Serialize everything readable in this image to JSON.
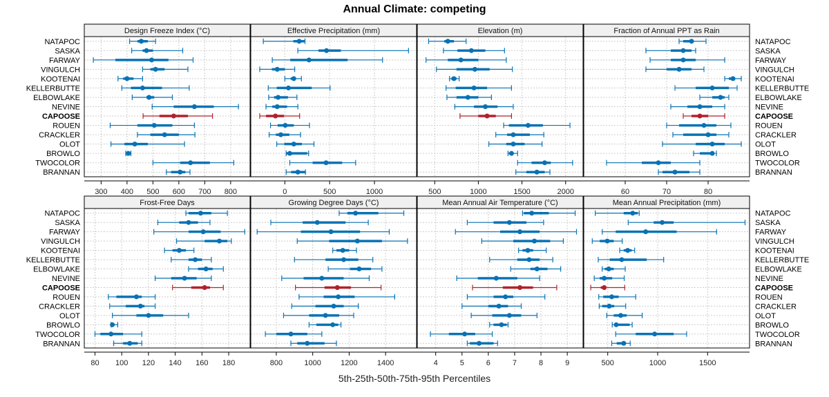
{
  "title": "Annual Climate: competing",
  "xlabel": "5th-25th-50th-75th-95th Percentiles",
  "colors": {
    "normal": "#0872b5",
    "highlight": "#b2202a",
    "strip_bg": "#f0f0f0",
    "grid": "#cccccc"
  },
  "highlight_site": "CAPOOSE",
  "chart_data": {
    "type": "interval-dotplot",
    "title": "Annual Climate: competing",
    "xlabel": "5th-25th-50th-75th-95th Percentiles",
    "sites": [
      "NATAPOC",
      "SASKA",
      "FARWAY",
      "VINGULCH",
      "KOOTENAI",
      "KELLERBUTTE",
      "ELBOWLAKE",
      "NEVINE",
      "CAPOOSE",
      "ROUEN",
      "CRACKLER",
      "OLOT",
      "BROWLO",
      "TWOCOLOR",
      "BRANNAN"
    ],
    "panels": [
      {
        "name": "Design Freeze Index (°C)",
        "ticks": [
          300,
          400,
          500,
          600,
          700,
          800
        ],
        "xlim": [
          235,
          875
        ],
        "values": [
          [
            410,
            440,
            455,
            480,
            510
          ],
          [
            418,
            460,
            475,
            500,
            615
          ],
          [
            270,
            355,
            495,
            560,
            655
          ],
          [
            460,
            490,
            510,
            545,
            635
          ],
          [
            365,
            385,
            400,
            425,
            460
          ],
          [
            380,
            415,
            460,
            535,
            640
          ],
          [
            420,
            475,
            485,
            505,
            575
          ],
          [
            497,
            580,
            660,
            735,
            830
          ],
          [
            462,
            525,
            580,
            635,
            730
          ],
          [
            335,
            440,
            505,
            575,
            660
          ],
          [
            440,
            490,
            545,
            600,
            662
          ],
          [
            338,
            390,
            430,
            480,
            622
          ],
          [
            395,
            400,
            405,
            410,
            415
          ],
          [
            500,
            605,
            645,
            720,
            812
          ],
          [
            552,
            570,
            605,
            625,
            643
          ]
        ]
      },
      {
        "name": "Effective Precipitation (mm)",
        "ticks": [
          0,
          500,
          1000
        ],
        "xlim": [
          -380,
          1470
        ],
        "values": [
          [
            -240,
            95,
            160,
            220,
            225
          ],
          [
            145,
            375,
            465,
            625,
            1380
          ],
          [
            -140,
            60,
            270,
            700,
            1090
          ],
          [
            -280,
            -145,
            -85,
            0,
            110
          ],
          [
            0,
            65,
            100,
            120,
            185
          ],
          [
            -185,
            -90,
            40,
            300,
            505
          ],
          [
            -180,
            -120,
            -75,
            35,
            135
          ],
          [
            -210,
            -140,
            -85,
            25,
            145
          ],
          [
            -280,
            -210,
            -105,
            -10,
            165
          ],
          [
            -160,
            -80,
            5,
            100,
            275
          ],
          [
            -175,
            -100,
            -45,
            50,
            175
          ],
          [
            -90,
            -5,
            100,
            190,
            325
          ],
          [
            15,
            15,
            55,
            250,
            265
          ],
          [
            55,
            310,
            460,
            640,
            790
          ],
          [
            15,
            70,
            145,
            230,
            230
          ]
        ]
      },
      {
        "name": "Elevation (m)",
        "ticks": [
          500,
          1000,
          1500,
          2000
        ],
        "xlim": [
          300,
          2200
        ],
        "values": [
          [
            430,
            610,
            650,
            720,
            860
          ],
          [
            600,
            760,
            920,
            1080,
            1300
          ],
          [
            400,
            650,
            800,
            1000,
            1320
          ],
          [
            520,
            750,
            960,
            1130,
            1390
          ],
          [
            670,
            690,
            720,
            750,
            780
          ],
          [
            630,
            740,
            950,
            1100,
            1380
          ],
          [
            640,
            750,
            880,
            1000,
            1150
          ],
          [
            730,
            950,
            1080,
            1220,
            1400
          ],
          [
            790,
            1000,
            1100,
            1200,
            1380
          ],
          [
            1290,
            1350,
            1570,
            1740,
            2050
          ],
          [
            1200,
            1330,
            1400,
            1590,
            1750
          ],
          [
            1120,
            1320,
            1400,
            1530,
            1730
          ],
          [
            1340,
            1350,
            1380,
            1400,
            1450
          ],
          [
            1450,
            1610,
            1760,
            1830,
            2080
          ],
          [
            1430,
            1550,
            1670,
            1760,
            1820
          ]
        ]
      },
      {
        "name": "Fraction of Annual PPT as Rain",
        "ticks": [
          60,
          70,
          80
        ],
        "xlim": [
          50,
          90
        ],
        "values": [
          [
            73,
            74,
            76,
            76.5,
            79.5
          ],
          [
            65,
            71,
            74,
            76,
            77
          ],
          [
            66,
            71,
            74,
            77,
            84
          ],
          [
            65,
            70,
            73,
            76,
            79
          ],
          [
            84,
            85,
            86,
            86.5,
            88
          ],
          [
            72,
            77,
            81,
            85,
            87
          ],
          [
            78,
            81,
            83,
            84,
            85
          ],
          [
            71,
            75,
            78,
            81,
            84
          ],
          [
            74,
            76,
            78,
            80,
            84
          ],
          [
            70,
            73,
            79,
            82,
            85.5
          ],
          [
            71.5,
            74,
            80,
            82,
            85
          ],
          [
            69,
            77,
            81,
            84,
            88
          ],
          [
            76.5,
            78,
            81,
            81.5,
            82
          ],
          [
            55.5,
            64,
            68,
            71,
            78
          ],
          [
            68,
            69,
            72,
            75.5,
            78
          ]
        ]
      },
      {
        "name": "Frost-Free Days",
        "ticks": [
          80,
          100,
          120,
          140,
          160,
          180
        ],
        "xlim": [
          72,
          196
        ],
        "values": [
          [
            148,
            150,
            159,
            167,
            179
          ],
          [
            127,
            143,
            150,
            157,
            166
          ],
          [
            124,
            150,
            161,
            174,
            192
          ],
          [
            141,
            162,
            173,
            179,
            182
          ],
          [
            132,
            138,
            143,
            148,
            154
          ],
          [
            137,
            150,
            155,
            160,
            167
          ],
          [
            150,
            157,
            163,
            168,
            176
          ],
          [
            125,
            137,
            147,
            156,
            167
          ],
          [
            138,
            152,
            162,
            166,
            176
          ],
          [
            90,
            96,
            111,
            115,
            125
          ],
          [
            91,
            103,
            114,
            117,
            125
          ],
          [
            93,
            111,
            120,
            131,
            150
          ],
          [
            92,
            92,
            93,
            94,
            97
          ],
          [
            80,
            84,
            92,
            101,
            115
          ],
          [
            94,
            101,
            106,
            112,
            115
          ]
        ]
      },
      {
        "name": "Growing Degree Days (°C)",
        "ticks": [
          800,
          1000,
          1200,
          1400
        ],
        "xlim": [
          660,
          1570
        ],
        "values": [
          [
            1145,
            1190,
            1235,
            1360,
            1500
          ],
          [
            770,
            945,
            1025,
            1180,
            1305
          ],
          [
            695,
            935,
            1100,
            1260,
            1420
          ],
          [
            915,
            1090,
            1245,
            1380,
            1520
          ],
          [
            1110,
            1130,
            1165,
            1200,
            1240
          ],
          [
            900,
            1070,
            1170,
            1250,
            1330
          ],
          [
            1085,
            1205,
            1255,
            1320,
            1380
          ],
          [
            830,
            950,
            1050,
            1170,
            1310
          ],
          [
            905,
            1065,
            1135,
            1210,
            1375
          ],
          [
            925,
            1060,
            1140,
            1230,
            1450
          ],
          [
            885,
            1015,
            1115,
            1170,
            1250
          ],
          [
            840,
            980,
            1070,
            1145,
            1225
          ],
          [
            980,
            1020,
            1110,
            1140,
            1155
          ],
          [
            740,
            800,
            880,
            970,
            1050
          ],
          [
            880,
            915,
            970,
            1065,
            1130
          ]
        ]
      },
      {
        "name": "Mean Annual Air Temperature (°C)",
        "ticks": [
          4,
          5,
          6,
          7,
          8,
          9
        ],
        "xlim": [
          3.3,
          9.6
        ],
        "values": [
          [
            7.3,
            7.35,
            7.65,
            8.3,
            9.3
          ],
          [
            5.2,
            6.2,
            6.8,
            7.45,
            8.1
          ],
          [
            4.75,
            6.45,
            7.2,
            7.95,
            9.35
          ],
          [
            5.75,
            6.95,
            7.75,
            8.35,
            8.85
          ],
          [
            7.15,
            7.3,
            7.5,
            7.7,
            8.2
          ],
          [
            6.05,
            7.1,
            7.55,
            7.95,
            8.45
          ],
          [
            6.85,
            7.6,
            7.85,
            8.25,
            8.75
          ],
          [
            4.8,
            5.6,
            6.3,
            7.1,
            7.95
          ],
          [
            5.4,
            6.55,
            7.2,
            7.7,
            8.6
          ],
          [
            5.2,
            6.2,
            6.65,
            6.95,
            8.15
          ],
          [
            5.0,
            6.0,
            6.4,
            6.75,
            7.25
          ],
          [
            5.35,
            6.15,
            6.8,
            7.25,
            7.85
          ],
          [
            6.05,
            6.2,
            6.5,
            6.7,
            6.75
          ],
          [
            3.8,
            4.5,
            5.1,
            5.5,
            6.15
          ],
          [
            5.2,
            5.3,
            5.65,
            6.2,
            6.35
          ]
        ]
      },
      {
        "name": "Mean Annual Precipitation (mm)",
        "ticks": [
          500,
          1000,
          1500
        ],
        "xlim": [
          260,
          1920
        ],
        "values": [
          [
            375,
            660,
            750,
            800,
            815
          ],
          [
            705,
            960,
            1045,
            1160,
            1875
          ],
          [
            445,
            580,
            880,
            1190,
            1590
          ],
          [
            345,
            420,
            495,
            560,
            645
          ],
          [
            620,
            660,
            700,
            740,
            770
          ],
          [
            405,
            520,
            640,
            890,
            1060
          ],
          [
            445,
            470,
            510,
            560,
            675
          ],
          [
            365,
            420,
            465,
            545,
            665
          ],
          [
            330,
            430,
            465,
            480,
            670
          ],
          [
            410,
            455,
            540,
            610,
            780
          ],
          [
            415,
            445,
            515,
            565,
            680
          ],
          [
            490,
            560,
            630,
            690,
            845
          ],
          [
            545,
            570,
            585,
            720,
            745
          ],
          [
            580,
            780,
            970,
            1160,
            1290
          ],
          [
            540,
            590,
            660,
            680,
            725
          ]
        ]
      }
    ]
  }
}
